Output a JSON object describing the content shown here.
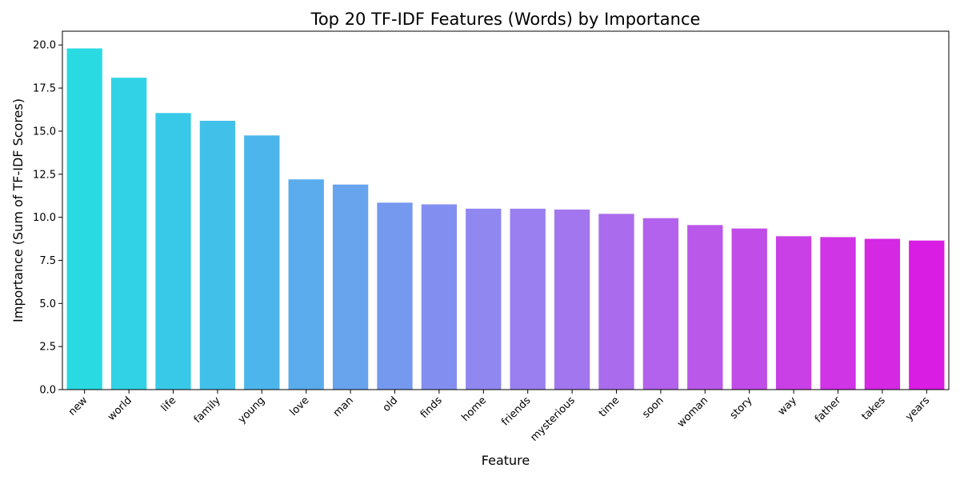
{
  "chart_data": {
    "type": "bar",
    "title": "Top 20 TF-IDF Features (Words) by Importance",
    "xlabel": "Feature",
    "ylabel": "Importance (Sum of TF-IDF Scores)",
    "categories": [
      "new",
      "world",
      "life",
      "family",
      "young",
      "love",
      "man",
      "old",
      "finds",
      "home",
      "friends",
      "mysterious",
      "time",
      "soon",
      "woman",
      "story",
      "way",
      "father",
      "takes",
      "years"
    ],
    "values": [
      19.8,
      18.1,
      16.05,
      15.6,
      14.75,
      12.2,
      11.9,
      10.85,
      10.75,
      10.5,
      10.5,
      10.45,
      10.2,
      9.95,
      9.55,
      9.35,
      8.9,
      8.85,
      8.75,
      8.65
    ],
    "ylim": [
      0,
      20.8
    ],
    "yticks": [
      "0.0",
      "2.5",
      "5.0",
      "7.5",
      "10.0",
      "12.5",
      "15.0",
      "17.5",
      "20.0"
    ],
    "colors": [
      "#2adae2",
      "#31d2e6",
      "#38c9e8",
      "#41c0ea",
      "#4cb6ec",
      "#5aaced",
      "#68a3ee",
      "#7599ef",
      "#838ff0",
      "#9087f0",
      "#9a7ff0",
      "#a276ee",
      "#aa6ced",
      "#b262ec",
      "#ba58ea",
      "#c24ce8",
      "#c940e6",
      "#cf34e5",
      "#d428e3",
      "#d91de2"
    ],
    "grid": false,
    "legend": "none"
  }
}
